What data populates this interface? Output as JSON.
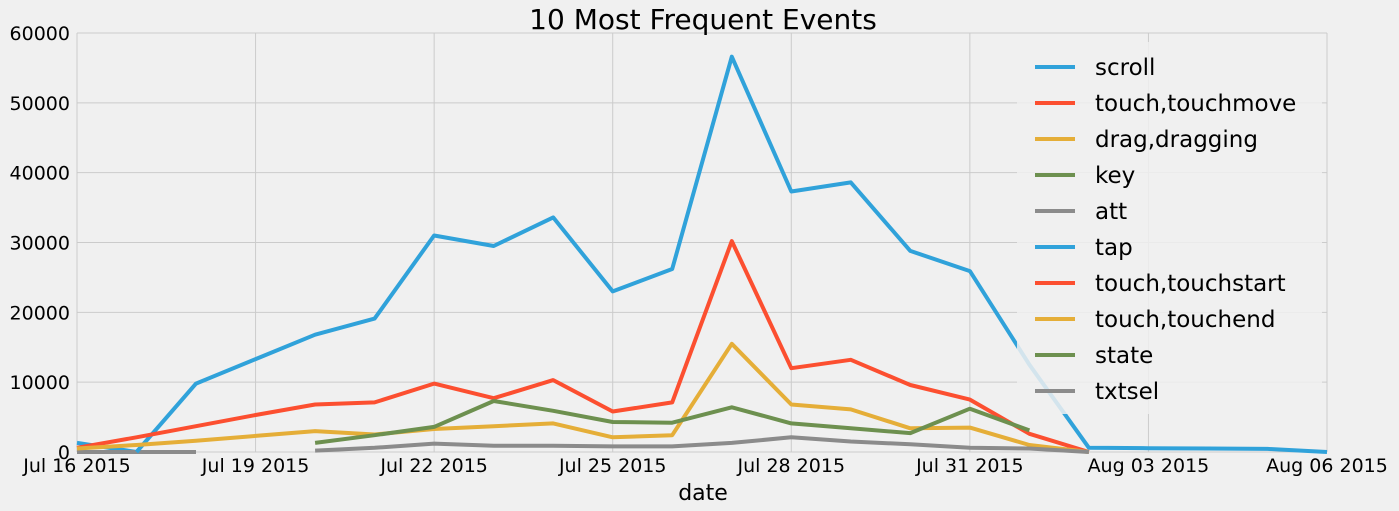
{
  "chart_data": {
    "type": "line",
    "title": "10 Most Frequent Events",
    "xlabel": "date",
    "ylabel": "",
    "ylim": [
      0,
      60000
    ],
    "xlim": [
      "2015-07-16",
      "2015-08-06"
    ],
    "x_tick_labels": [
      "Jul 16 2015",
      "Jul 19 2015",
      "Jul 22 2015",
      "Jul 25 2015",
      "Jul 28 2015",
      "Jul 31 2015",
      "Aug 03 2015",
      "Aug 06 2015"
    ],
    "x_tick_dates": [
      "2015-07-16",
      "2015-07-19",
      "2015-07-22",
      "2015-07-25",
      "2015-07-28",
      "2015-07-31",
      "2015-08-03",
      "2015-08-06"
    ],
    "y_tick_labels": [
      "0",
      "10000",
      "20000",
      "30000",
      "40000",
      "50000",
      "60000"
    ],
    "y_tick_values": [
      0,
      10000,
      20000,
      30000,
      40000,
      50000,
      60000
    ],
    "grid": true,
    "legend_position": "top-right",
    "series": [
      {
        "name": "scroll",
        "color": "#30a2da",
        "points": [
          [
            "2015-07-16",
            1300
          ],
          [
            "2015-07-17",
            0
          ]
        ]
      },
      {
        "name": "touch,touchmove",
        "color": "#fc4f30",
        "points": [
          [
            "2015-07-16",
            600
          ]
        ]
      },
      {
        "name": "drag,dragging",
        "color": "#e5ae38",
        "points": [
          [
            "2015-07-16",
            200
          ]
        ]
      },
      {
        "name": "key",
        "color": "#6d904f",
        "points": [
          [
            "2015-07-16",
            0
          ],
          [
            "2015-07-17",
            0
          ],
          [
            "2015-07-18",
            0
          ]
        ]
      },
      {
        "name": "att",
        "color": "#8b8b8b",
        "points": [
          [
            "2015-07-16",
            0
          ],
          [
            "2015-07-17",
            0
          ],
          [
            "2015-07-18",
            0
          ]
        ]
      },
      {
        "name": "tap",
        "color": "#30a2da",
        "points": [
          [
            "2015-07-17",
            0
          ],
          [
            "2015-07-18",
            9800
          ],
          [
            "2015-07-19",
            13300
          ],
          [
            "2015-07-20",
            16800
          ],
          [
            "2015-07-21",
            19100
          ],
          [
            "2015-07-22",
            31000
          ],
          [
            "2015-07-23",
            29500
          ],
          [
            "2015-07-24",
            33600
          ],
          [
            "2015-07-25",
            23000
          ],
          [
            "2015-07-26",
            26200
          ],
          [
            "2015-07-27",
            56600
          ],
          [
            "2015-07-28",
            37300
          ],
          [
            "2015-07-29",
            38600
          ],
          [
            "2015-07-30",
            28800
          ],
          [
            "2015-07-31",
            25900
          ],
          [
            "2015-08-01",
            12500
          ],
          [
            "2015-08-02",
            600
          ],
          [
            "2015-08-03",
            550
          ],
          [
            "2015-08-04",
            500
          ],
          [
            "2015-08-05",
            450
          ],
          [
            "2015-08-06",
            0
          ]
        ]
      },
      {
        "name": "touch,touchstart",
        "color": "#fc4f30",
        "points": [
          [
            "2015-07-16",
            600
          ],
          [
            "2015-07-17",
            2100
          ],
          [
            "2015-07-18",
            3700
          ],
          [
            "2015-07-19",
            5300
          ],
          [
            "2015-07-20",
            6800
          ],
          [
            "2015-07-21",
            7100
          ],
          [
            "2015-07-22",
            9800
          ],
          [
            "2015-07-23",
            7700
          ],
          [
            "2015-07-24",
            10300
          ],
          [
            "2015-07-25",
            5800
          ],
          [
            "2015-07-26",
            7100
          ],
          [
            "2015-07-27",
            30200
          ],
          [
            "2015-07-28",
            12000
          ],
          [
            "2015-07-29",
            13200
          ],
          [
            "2015-07-30",
            9600
          ],
          [
            "2015-07-31",
            7500
          ],
          [
            "2015-08-01",
            2600
          ],
          [
            "2015-08-02",
            0
          ]
        ]
      },
      {
        "name": "touch,touchend",
        "color": "#e5ae38",
        "points": [
          [
            "2015-07-16",
            500
          ],
          [
            "2015-07-17",
            1000
          ],
          [
            "2015-07-18",
            1600
          ],
          [
            "2015-07-19",
            2300
          ],
          [
            "2015-07-20",
            3000
          ],
          [
            "2015-07-21",
            2500
          ],
          [
            "2015-07-22",
            3300
          ],
          [
            "2015-07-23",
            3700
          ],
          [
            "2015-07-24",
            4100
          ],
          [
            "2015-07-25",
            2100
          ],
          [
            "2015-07-26",
            2400
          ],
          [
            "2015-07-27",
            15500
          ],
          [
            "2015-07-28",
            6800
          ],
          [
            "2015-07-29",
            6100
          ],
          [
            "2015-07-30",
            3400
          ],
          [
            "2015-07-31",
            3500
          ],
          [
            "2015-08-01",
            1000
          ],
          [
            "2015-08-02",
            0
          ]
        ]
      },
      {
        "name": "state",
        "color": "#6d904f",
        "points": [
          [
            "2015-07-20",
            1300
          ],
          [
            "2015-07-21",
            2400
          ],
          [
            "2015-07-22",
            3600
          ],
          [
            "2015-07-23",
            7300
          ],
          [
            "2015-07-24",
            5900
          ],
          [
            "2015-07-25",
            4300
          ],
          [
            "2015-07-26",
            4200
          ],
          [
            "2015-07-27",
            6400
          ],
          [
            "2015-07-28",
            4100
          ],
          [
            "2015-07-29",
            3400
          ],
          [
            "2015-07-30",
            2700
          ],
          [
            "2015-07-31",
            6200
          ],
          [
            "2015-08-01",
            3100
          ]
        ]
      },
      {
        "name": "txtsel",
        "color": "#8b8b8b",
        "points": [
          [
            "2015-07-20",
            200
          ],
          [
            "2015-07-21",
            600
          ],
          [
            "2015-07-22",
            1200
          ],
          [
            "2015-07-23",
            900
          ],
          [
            "2015-07-24",
            900
          ],
          [
            "2015-07-25",
            800
          ],
          [
            "2015-07-26",
            800
          ],
          [
            "2015-07-27",
            1300
          ],
          [
            "2015-07-28",
            2100
          ],
          [
            "2015-07-29",
            1500
          ],
          [
            "2015-07-30",
            1100
          ],
          [
            "2015-07-31",
            600
          ],
          [
            "2015-08-01",
            500
          ],
          [
            "2015-08-02",
            0
          ]
        ]
      }
    ]
  }
}
